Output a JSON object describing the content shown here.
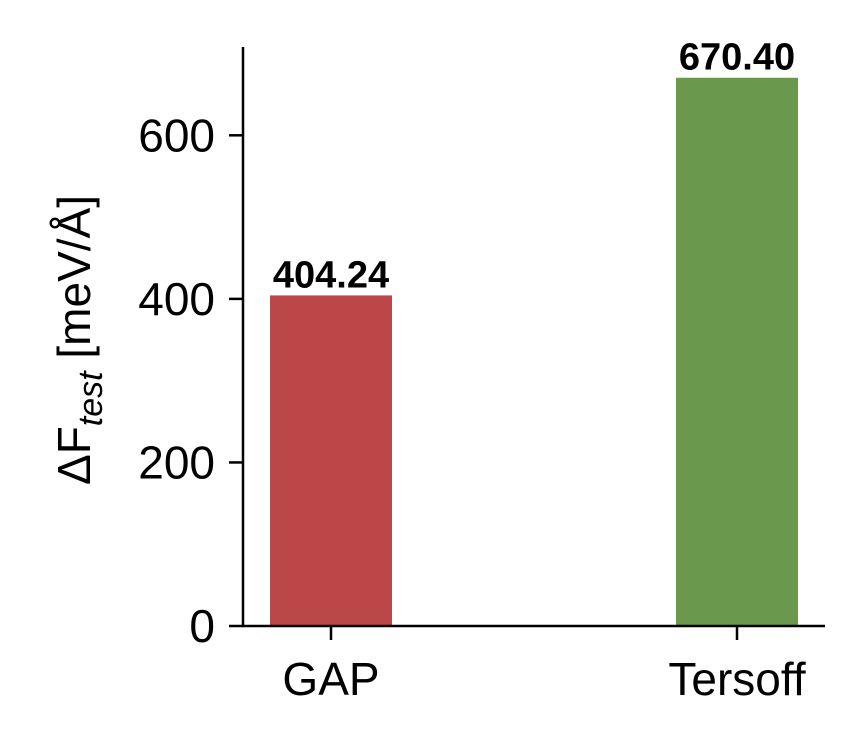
{
  "chart_data": {
    "type": "bar",
    "title": "",
    "xlabel": "",
    "ylabel": "ΔF_test [meV/Å]",
    "ylabel_parts": {
      "main": "ΔF",
      "subscript": "test",
      "unit": " [meV/Å]"
    },
    "categories": [
      "GAP",
      "Tersoff"
    ],
    "values": [
      404.24,
      670.4
    ],
    "value_labels": [
      "404.24",
      "670.40"
    ],
    "colors": [
      "#bc4749",
      "#6a994e"
    ],
    "ylim": [
      0,
      708
    ],
    "yticks": [
      0,
      200,
      400,
      600
    ],
    "ytick_labels": [
      "0",
      "200",
      "400",
      "600"
    ],
    "grid": false,
    "legend": null
  }
}
